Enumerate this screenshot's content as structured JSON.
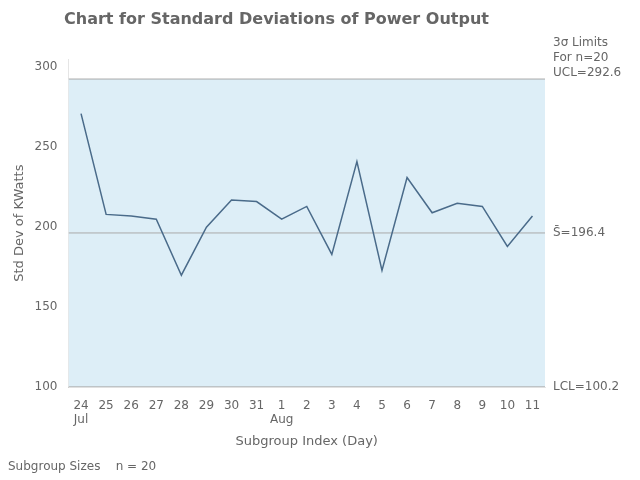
{
  "chart_data": {
    "type": "line",
    "title": "Chart for Standard Deviations of Power Output",
    "x_label": "Subgroup Index (Day)",
    "y_label": "Std Dev of KWatts",
    "categories": [
      "24",
      "25",
      "26",
      "27",
      "28",
      "29",
      "30",
      "31",
      "1",
      "2",
      "3",
      "4",
      "5",
      "6",
      "7",
      "8",
      "9",
      "10",
      "11"
    ],
    "month_labels": [
      "Jul",
      null,
      null,
      null,
      null,
      null,
      null,
      null,
      "Aug",
      null,
      null,
      null,
      null,
      null,
      null,
      null,
      null,
      null,
      null
    ],
    "values": [
      271,
      208,
      207,
      205,
      170,
      200,
      217,
      216,
      205,
      213,
      183,
      241,
      173,
      231,
      209,
      215,
      213,
      188,
      207
    ],
    "color": "#4a6b8a",
    "ylim": [
      100,
      305
    ],
    "yticks": [
      100,
      150,
      200,
      250,
      300
    ],
    "grid": false,
    "band": {
      "low": 100.2,
      "high": 292.6,
      "color": "#ddeef7"
    },
    "lines": [
      {
        "value": 292.6,
        "label": "3σ Limits\nFor n=20\nUCL=292.6",
        "color": "#aaaaaa"
      },
      {
        "value": 196.4,
        "label": "S̄=196.4",
        "color": "#aaaaaa"
      },
      {
        "value": 100.2,
        "label": "LCL=100.2",
        "color": "#aaaaaa"
      }
    ],
    "footnote": "Subgroup Sizes    n = 20"
  }
}
